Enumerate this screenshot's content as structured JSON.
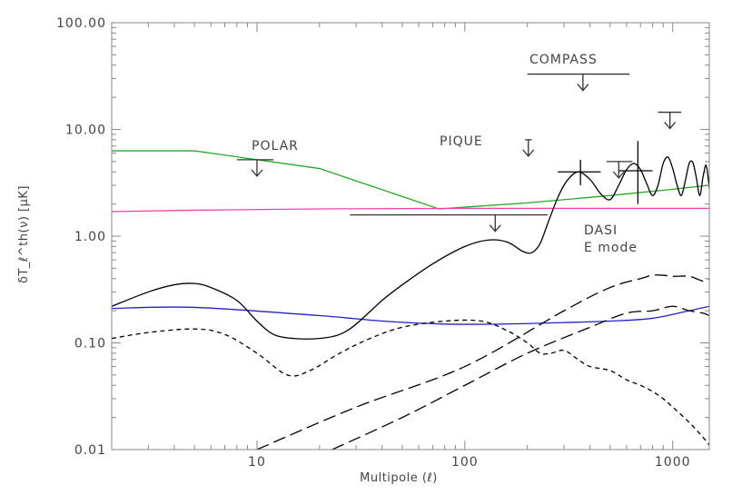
{
  "chart_data": {
    "type": "line",
    "title": "",
    "xlabel": "Multipole (ℓ)",
    "ylabel": "δT_ℓ^th(ν) [μK]",
    "xscale": "log",
    "yscale": "log",
    "xlim": [
      2,
      1500
    ],
    "ylim": [
      0.01,
      100
    ],
    "grid": false,
    "x_ticks": [
      {
        "value": 10,
        "label": "10"
      },
      {
        "value": 100,
        "label": "100"
      },
      {
        "value": 1000,
        "label": "1000"
      }
    ],
    "y_ticks": [
      {
        "value": 0.01,
        "label": "0.01"
      },
      {
        "value": 0.1,
        "label": "0.10"
      },
      {
        "value": 1,
        "label": "1.00"
      },
      {
        "value": 10,
        "label": "10.00"
      },
      {
        "value": 100,
        "label": "100.00"
      }
    ],
    "colors": {
      "green": "#22aa22",
      "magenta": "#ee44aa",
      "blue": "#2222cc",
      "black": "#000000",
      "axis": "#888888"
    },
    "series": [
      {
        "color": "green",
        "style": "solid",
        "x": [
          2,
          5,
          20,
          75,
          200,
          500,
          1000,
          1500
        ],
        "y": [
          6.3,
          6.3,
          4.3,
          1.8,
          2.05,
          2.4,
          2.75,
          3.0
        ]
      },
      {
        "color": "magenta",
        "style": "solid",
        "x": [
          2,
          5,
          20,
          100,
          500,
          1500
        ],
        "y": [
          1.7,
          1.75,
          1.8,
          1.82,
          1.82,
          1.82
        ]
      },
      {
        "color": "blue",
        "style": "solid",
        "x": [
          2,
          5,
          20,
          40,
          80,
          150,
          300,
          500,
          800,
          1200,
          1500
        ],
        "y": [
          0.21,
          0.215,
          0.18,
          0.16,
          0.15,
          0.15,
          0.155,
          0.16,
          0.17,
          0.2,
          0.22
        ]
      },
      {
        "color": "black",
        "style": "solid",
        "x": [
          2,
          3,
          4,
          5,
          6,
          8,
          10,
          12,
          15,
          20,
          25,
          30,
          40,
          50,
          70,
          100,
          130,
          160,
          190,
          210,
          230,
          250,
          280,
          310,
          350,
          400,
          450,
          500,
          550,
          600,
          650,
          700,
          750,
          800,
          850,
          900,
          950,
          1000,
          1050,
          1100,
          1150,
          1200,
          1250,
          1300,
          1350,
          1400,
          1450,
          1500
        ],
        "y": [
          0.22,
          0.3,
          0.35,
          0.36,
          0.33,
          0.25,
          0.16,
          0.12,
          0.11,
          0.11,
          0.12,
          0.15,
          0.25,
          0.35,
          0.55,
          0.8,
          0.92,
          0.88,
          0.72,
          0.7,
          0.85,
          1.3,
          2.3,
          3.3,
          4.0,
          3.4,
          2.5,
          2.2,
          3.0,
          4.2,
          4.8,
          4.2,
          3.1,
          2.4,
          3.0,
          4.8,
          5.5,
          4.3,
          3.0,
          2.4,
          3.3,
          4.8,
          4.9,
          3.5,
          2.4,
          3.6,
          4.6,
          2.8
        ]
      },
      {
        "color": "black",
        "style": "short-dash",
        "x": [
          2,
          3,
          5,
          7,
          10,
          14,
          18,
          25,
          35,
          50,
          80,
          120,
          160,
          200,
          230,
          260,
          300,
          350,
          400,
          500,
          600,
          700,
          800,
          900,
          1000,
          1200,
          1400,
          1500
        ],
        "y": [
          0.11,
          0.125,
          0.135,
          0.12,
          0.08,
          0.05,
          0.055,
          0.08,
          0.11,
          0.14,
          0.16,
          0.16,
          0.13,
          0.1,
          0.08,
          0.08,
          0.085,
          0.07,
          0.06,
          0.055,
          0.045,
          0.04,
          0.035,
          0.03,
          0.025,
          0.018,
          0.013,
          0.011
        ]
      },
      {
        "color": "black",
        "style": "long-dash",
        "x": [
          10,
          30,
          100,
          300,
          500,
          700,
          800,
          900,
          1000,
          1200,
          1400,
          1500
        ],
        "y": [
          0.01,
          0.025,
          0.06,
          0.2,
          0.33,
          0.4,
          0.43,
          0.43,
          0.42,
          0.42,
          0.38,
          0.4
        ]
      },
      {
        "color": "black",
        "style": "long-dash",
        "x": [
          23,
          50,
          100,
          200,
          400,
          600,
          800,
          1000,
          1200,
          1400,
          1500
        ],
        "y": [
          0.01,
          0.02,
          0.04,
          0.08,
          0.14,
          0.19,
          0.2,
          0.22,
          0.2,
          0.19,
          0.18
        ]
      }
    ],
    "upper_limits": [
      {
        "label": "POLAR",
        "label_at": [
          9.5,
          7.9
        ],
        "x_range": [
          8,
          12
        ],
        "y": 5.2,
        "arrow_x": 10
      },
      {
        "label": "PIQUE",
        "label_at": [
          120,
          8.4
        ],
        "x_range": [
          195,
          210
        ],
        "y": 8.0,
        "arrow_x": 202
      },
      {
        "label": "COMPASS",
        "label_at": [
          360,
          46
        ],
        "x_range": [
          200,
          620
        ],
        "y": 33,
        "arrow_x": 370
      },
      {
        "label": "",
        "x_range": [
          28,
          250
        ],
        "y": 1.58,
        "arrow_x": 140
      },
      {
        "label": "",
        "x_range": [
          480,
          640
        ],
        "y": 5.0,
        "arrow_x": 550
      },
      {
        "label": "",
        "x_range": [
          850,
          1100
        ],
        "y": 14.5,
        "arrow_x": 970
      }
    ],
    "error_bars": [
      {
        "x": 360,
        "x_range": [
          280,
          450
        ],
        "y": 4.0,
        "y_range": [
          3.0,
          5.2
        ]
      },
      {
        "x": 680,
        "x_range": [
          550,
          800
        ],
        "y": 4.1,
        "y_range": [
          2.0,
          7.8
        ]
      }
    ],
    "annotations": [
      "DASI",
      "E mode"
    ]
  }
}
